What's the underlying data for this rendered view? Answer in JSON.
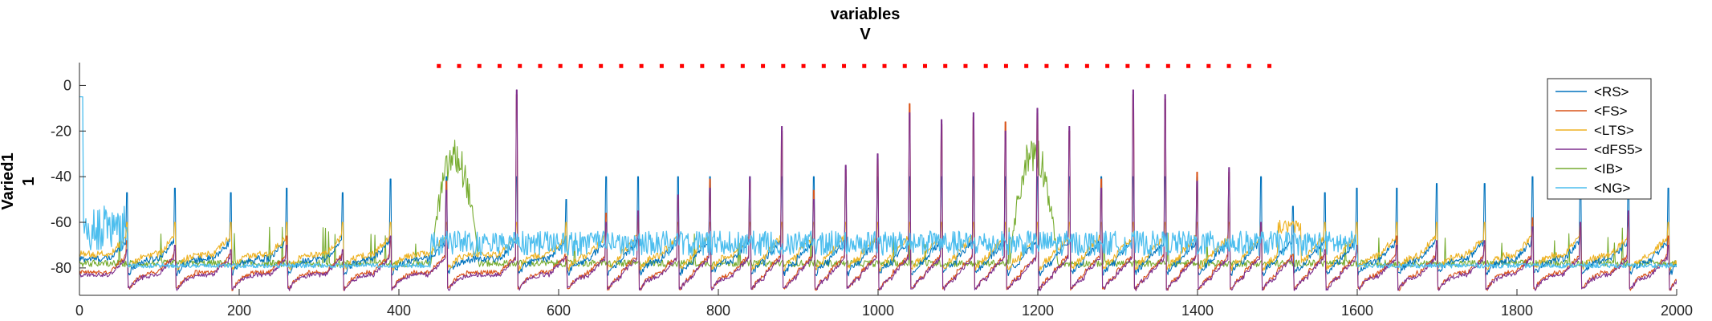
{
  "chart_data": {
    "type": "line",
    "title": [
      "variables",
      "V"
    ],
    "ylabel": [
      "Varied1",
      "1"
    ],
    "xlabel": "",
    "xlim": [
      0,
      2000
    ],
    "ylim": [
      -92,
      10
    ],
    "xticks": [
      0,
      200,
      400,
      600,
      800,
      1000,
      1200,
      1400,
      1600,
      1800,
      2000
    ],
    "yticks": [
      0,
      -20,
      -40,
      -60,
      -80
    ],
    "grid": false,
    "legend_position": "top-right",
    "series": [
      {
        "name": "<RS>",
        "color": "#0072BD",
        "baseline": -76,
        "spike_peak": -40
      },
      {
        "name": "<FS>",
        "color": "#D95319",
        "baseline": -82,
        "spike_peak": -5
      },
      {
        "name": "<LTS>",
        "color": "#EDB120",
        "baseline": -74,
        "spike_peak": -60
      },
      {
        "name": "<dFS5>",
        "color": "#7E2F8E",
        "baseline": -83,
        "spike_peak": -10
      },
      {
        "name": "<IB>",
        "color": "#77AC30",
        "baseline": -78,
        "bursts": [
          [
            440,
            500,
            -28
          ],
          [
            1165,
            1225,
            -25
          ]
        ]
      },
      {
        "name": "<NG>",
        "color": "#4DBEEE",
        "baseline": -77,
        "noisy_band": [
          [
            0,
            60,
            -55
          ],
          [
            440,
            1600,
            -65
          ]
        ]
      }
    ],
    "spike_times": [
      60,
      120,
      190,
      260,
      330,
      390,
      460,
      548,
      610,
      660,
      700,
      750,
      790,
      840,
      880,
      920,
      960,
      1000,
      1040,
      1080,
      1120,
      1160,
      1200,
      1240,
      1280,
      1320,
      1360,
      1400,
      1440,
      1480,
      1520,
      1560,
      1600,
      1650,
      1700,
      1760,
      1820,
      1880,
      1940,
      1990
    ],
    "spike_peaks_dFS5": [
      -72,
      -70,
      -72,
      -70,
      -72,
      -66,
      -46,
      -2,
      -75,
      -60,
      -55,
      -48,
      -45,
      -40,
      -18,
      -50,
      -35,
      -30,
      -12,
      -15,
      -12,
      -20,
      -10,
      -18,
      -45,
      -2,
      -4,
      -42,
      -36,
      -60,
      -78,
      -72,
      -70,
      -70,
      -68,
      -68,
      -62,
      -60,
      -55,
      -70
    ],
    "stimulus_markers": {
      "color": "#FF0000",
      "start": 450,
      "end": 1490,
      "y": 8.5,
      "count": 42
    }
  }
}
